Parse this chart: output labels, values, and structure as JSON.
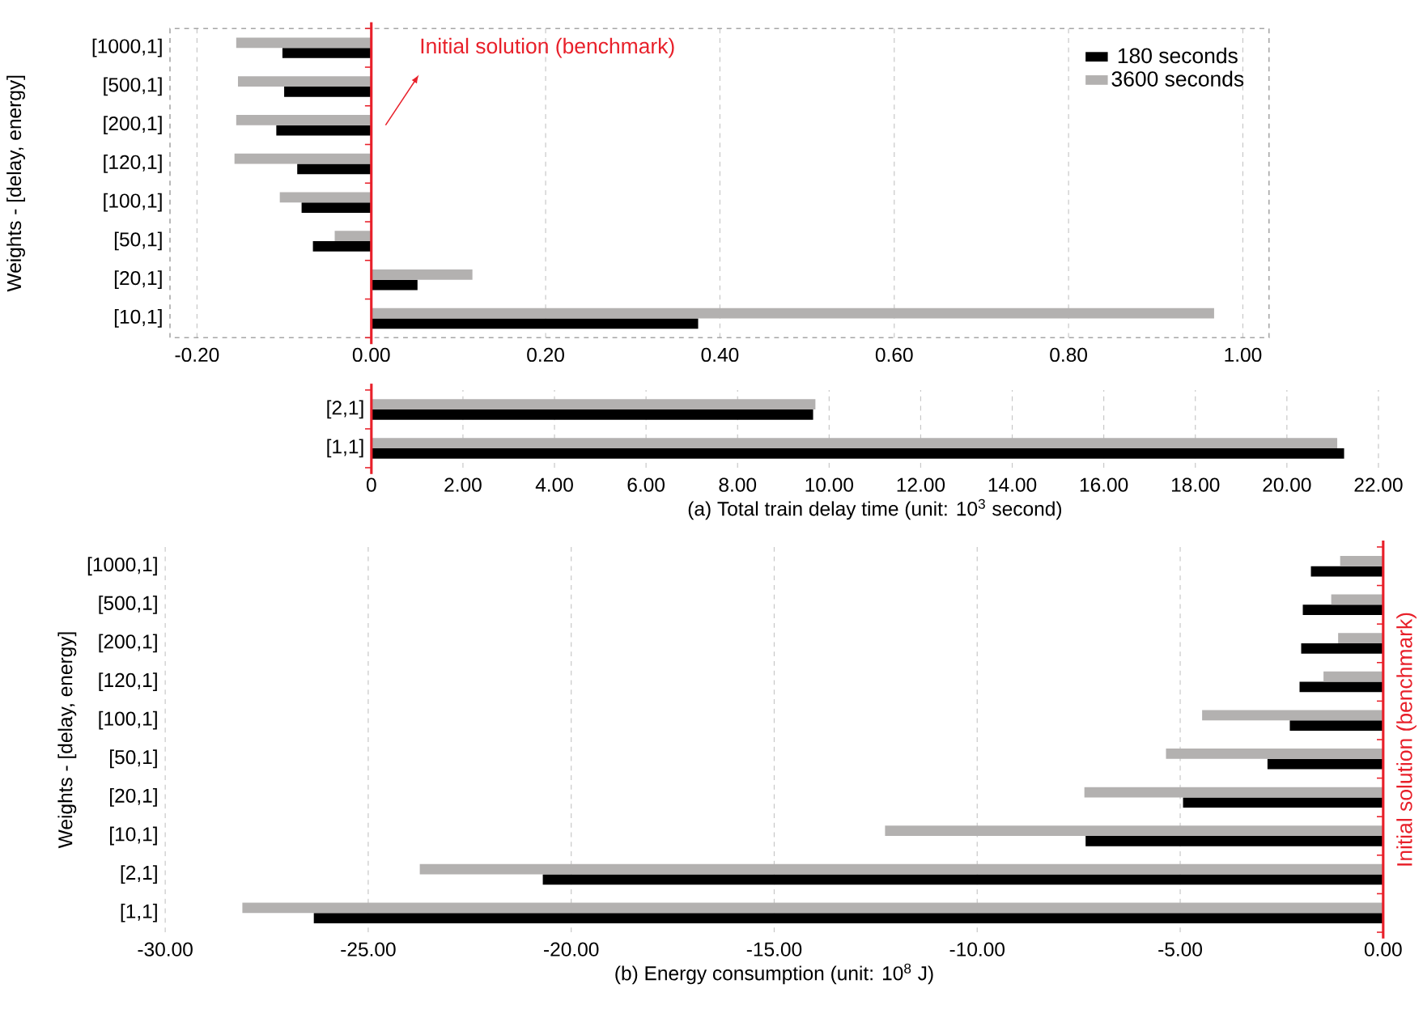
{
  "chart_data": [
    {
      "type": "bar",
      "orientation": "horizontal",
      "ylabel": "Weights - [delay, energy]",
      "categories": [
        "[1000,1]",
        "[500,1]",
        "[200,1]",
        "[120,1]",
        "[100,1]",
        "[50,1]",
        "[20,1]",
        "[10,1]"
      ],
      "series": [
        {
          "name": "180 seconds",
          "color": "#000000",
          "values": [
            -0.102,
            -0.1,
            -0.109,
            -0.085,
            -0.08,
            -0.067,
            0.053,
            0.375
          ]
        },
        {
          "name": "3600 seconds",
          "color": "#b3b1b0",
          "values": [
            -0.155,
            -0.153,
            -0.155,
            -0.157,
            -0.105,
            -0.042,
            0.116,
            0.967
          ]
        }
      ],
      "xlim": [
        -0.231,
        1.03
      ],
      "xticks": [
        {
          "value": -0.2,
          "label": "-0.20"
        },
        {
          "value": 0,
          "label": "0.00"
        },
        {
          "value": 0.2,
          "label": "0.20"
        },
        {
          "value": 0.4,
          "label": "0.40"
        },
        {
          "value": 0.6,
          "label": "0.60"
        },
        {
          "value": 0.8,
          "label": "0.80"
        },
        {
          "value": 1.0,
          "label": "1.00"
        }
      ],
      "grid": "x",
      "legend": "top right",
      "ref_lines": [
        {
          "axis": "x",
          "value": 0,
          "label": "Initial solution (benchmark)",
          "color": "#e8202a"
        }
      ]
    },
    {
      "type": "bar",
      "orientation": "horizontal",
      "xlabel": "(a) Total train delay time (unit: 10$^{3}$ second)",
      "categories": [
        "[2,1]",
        "[1,1]"
      ],
      "series": [
        {
          "color": "#000000",
          "values": [
            9.65,
            21.25
          ]
        },
        {
          "color": "#b3b1b0",
          "values": [
            9.7,
            21.1
          ]
        }
      ],
      "xlim": [
        0,
        22
      ],
      "xticks": [
        0,
        {
          "value": 2,
          "label": "2.00"
        },
        {
          "value": 4,
          "label": "4.00"
        },
        {
          "value": 6,
          "label": "6.00"
        },
        {
          "value": 8,
          "label": "8.00"
        },
        {
          "value": 10,
          "label": "10.00"
        },
        {
          "value": 12,
          "label": "12.00"
        },
        {
          "value": 14,
          "label": "14.00"
        },
        {
          "value": 16,
          "label": "16.00"
        },
        {
          "value": 18,
          "label": "18.00"
        },
        {
          "value": 20,
          "label": "20.00"
        },
        {
          "value": 22,
          "label": "22.00"
        }
      ],
      "grid": "x"
    },
    {
      "type": "bar",
      "orientation": "horizontal",
      "xlabel": "(b) Energy consumption (unit: 10$^{8}$ J)",
      "ylabel": "Weights - [delay, energy]",
      "categories": [
        "[1000,1]",
        "[500,1]",
        "[200,1]",
        "[120,1]",
        "[100,1]",
        "[50,1]",
        "[20,1]",
        "[10,1]",
        "[2,1]",
        "[1,1]"
      ],
      "series": [
        {
          "color": "#000000",
          "values": [
            -1.78,
            -1.98,
            -2.02,
            -2.06,
            -2.3,
            -2.85,
            -4.93,
            -7.33,
            -20.7,
            -26.34
          ]
        },
        {
          "color": "#b3b1b0",
          "values": [
            -1.06,
            -1.28,
            -1.11,
            -1.47,
            -4.46,
            -5.35,
            -7.36,
            -12.27,
            -23.73,
            -28.1
          ]
        }
      ],
      "xlim": [
        -30,
        0
      ],
      "xticks": [
        {
          "value": -30,
          "label": "-30.00"
        },
        {
          "value": -25,
          "label": "-25.00"
        },
        {
          "value": -20,
          "label": "-20.00"
        },
        {
          "value": -15,
          "label": "-15.00"
        },
        {
          "value": -10,
          "label": "-10.00"
        },
        {
          "value": -5,
          "label": "-5.00"
        },
        {
          "value": 0,
          "label": "0.00"
        }
      ],
      "grid": "x",
      "ref_lines": [
        {
          "axis": "x",
          "value": 0,
          "label": "Initial solution (benchmark)",
          "color": "#e8202a"
        }
      ]
    }
  ]
}
